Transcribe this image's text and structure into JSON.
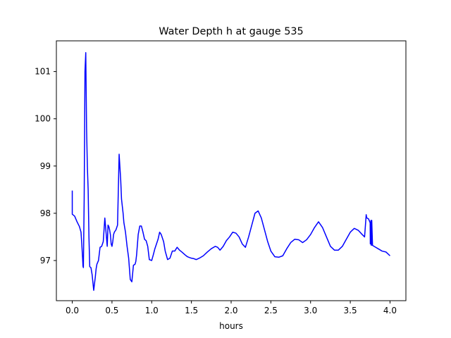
{
  "chart_data": {
    "type": "line",
    "title": "Water Depth h at gauge 535",
    "xlabel": "hours",
    "ylabel": "",
    "xlim": [
      -0.2,
      4.2
    ],
    "ylim": [
      96.15,
      101.65
    ],
    "xticks": [
      0.0,
      0.5,
      1.0,
      1.5,
      2.0,
      2.5,
      3.0,
      3.5,
      4.0
    ],
    "xtick_labels": [
      "0.0",
      "0.5",
      "1.0",
      "1.5",
      "2.0",
      "2.5",
      "3.0",
      "3.5",
      "4.0"
    ],
    "yticks": [
      97,
      98,
      99,
      100,
      101
    ],
    "ytick_labels": [
      "97",
      "98",
      "99",
      "100",
      "101"
    ],
    "grid": false,
    "series": [
      {
        "color": "#0000ff",
        "x": [
          0.0,
          0.0,
          0.0,
          0.03,
          0.06,
          0.09,
          0.11,
          0.12,
          0.13,
          0.135,
          0.14,
          0.15,
          0.16,
          0.17,
          0.18,
          0.19,
          0.2,
          0.21,
          0.22,
          0.235,
          0.25,
          0.27,
          0.29,
          0.3,
          0.31,
          0.33,
          0.35,
          0.37,
          0.39,
          0.41,
          0.43,
          0.44,
          0.45,
          0.46,
          0.47,
          0.48,
          0.49,
          0.5,
          0.51,
          0.52,
          0.53,
          0.55,
          0.57,
          0.59,
          0.61,
          0.62,
          0.63,
          0.64,
          0.65,
          0.67,
          0.69,
          0.71,
          0.73,
          0.75,
          0.77,
          0.79,
          0.8,
          0.81,
          0.83,
          0.85,
          0.87,
          0.89,
          0.91,
          0.93,
          0.95,
          0.97,
          1.0,
          1.02,
          1.04,
          1.06,
          1.08,
          1.1,
          1.12,
          1.15,
          1.17,
          1.2,
          1.23,
          1.26,
          1.29,
          1.32,
          1.35,
          1.38,
          1.42,
          1.45,
          1.48,
          1.5,
          1.53,
          1.56,
          1.6,
          1.65,
          1.7,
          1.75,
          1.8,
          1.83,
          1.86,
          1.9,
          1.94,
          1.98,
          2.02,
          2.06,
          2.1,
          2.14,
          2.18,
          2.22,
          2.26,
          2.3,
          2.34,
          2.38,
          2.42,
          2.46,
          2.5,
          2.55,
          2.6,
          2.65,
          2.7,
          2.75,
          2.8,
          2.85,
          2.9,
          2.95,
          3.0,
          3.05,
          3.1,
          3.15,
          3.2,
          3.25,
          3.3,
          3.35,
          3.4,
          3.45,
          3.5,
          3.55,
          3.6,
          3.65,
          3.68,
          3.7,
          3.705,
          3.71,
          3.73,
          3.75,
          3.752,
          3.76,
          3.765,
          3.767,
          3.77,
          3.78,
          3.8,
          3.85,
          3.9,
          3.95,
          4.0
        ],
        "y": [
          98.48,
          98.1,
          97.98,
          97.94,
          97.82,
          97.72,
          97.6,
          97.35,
          97.05,
          96.88,
          96.85,
          98.3,
          101.0,
          101.4,
          99.8,
          99.0,
          98.5,
          97.5,
          96.87,
          96.85,
          96.7,
          96.37,
          96.65,
          96.82,
          96.92,
          97.0,
          97.28,
          97.3,
          97.4,
          97.9,
          97.5,
          97.3,
          97.75,
          97.72,
          97.65,
          97.55,
          97.35,
          97.3,
          97.4,
          97.55,
          97.6,
          97.65,
          97.75,
          99.25,
          98.7,
          98.3,
          98.15,
          98.0,
          97.8,
          97.6,
          97.3,
          97.05,
          96.6,
          96.55,
          96.9,
          96.92,
          96.98,
          97.12,
          97.55,
          97.73,
          97.73,
          97.6,
          97.45,
          97.42,
          97.3,
          97.02,
          97.0,
          97.12,
          97.25,
          97.35,
          97.45,
          97.6,
          97.55,
          97.4,
          97.2,
          97.02,
          97.05,
          97.2,
          97.2,
          97.28,
          97.22,
          97.18,
          97.12,
          97.08,
          97.06,
          97.05,
          97.04,
          97.02,
          97.05,
          97.1,
          97.18,
          97.25,
          97.3,
          97.28,
          97.22,
          97.3,
          97.42,
          97.5,
          97.6,
          97.58,
          97.5,
          97.35,
          97.28,
          97.5,
          97.75,
          98.0,
          98.05,
          97.9,
          97.65,
          97.4,
          97.2,
          97.08,
          97.07,
          97.1,
          97.25,
          97.38,
          97.45,
          97.44,
          97.38,
          97.44,
          97.55,
          97.7,
          97.82,
          97.7,
          97.5,
          97.3,
          97.22,
          97.22,
          97.3,
          97.45,
          97.6,
          97.68,
          97.64,
          97.55,
          97.5,
          97.97,
          97.92,
          97.9,
          97.88,
          97.8,
          97.35,
          97.85,
          97.32,
          97.35,
          97.85,
          97.32,
          97.3,
          97.25,
          97.2,
          97.18,
          97.1
        ]
      }
    ]
  }
}
